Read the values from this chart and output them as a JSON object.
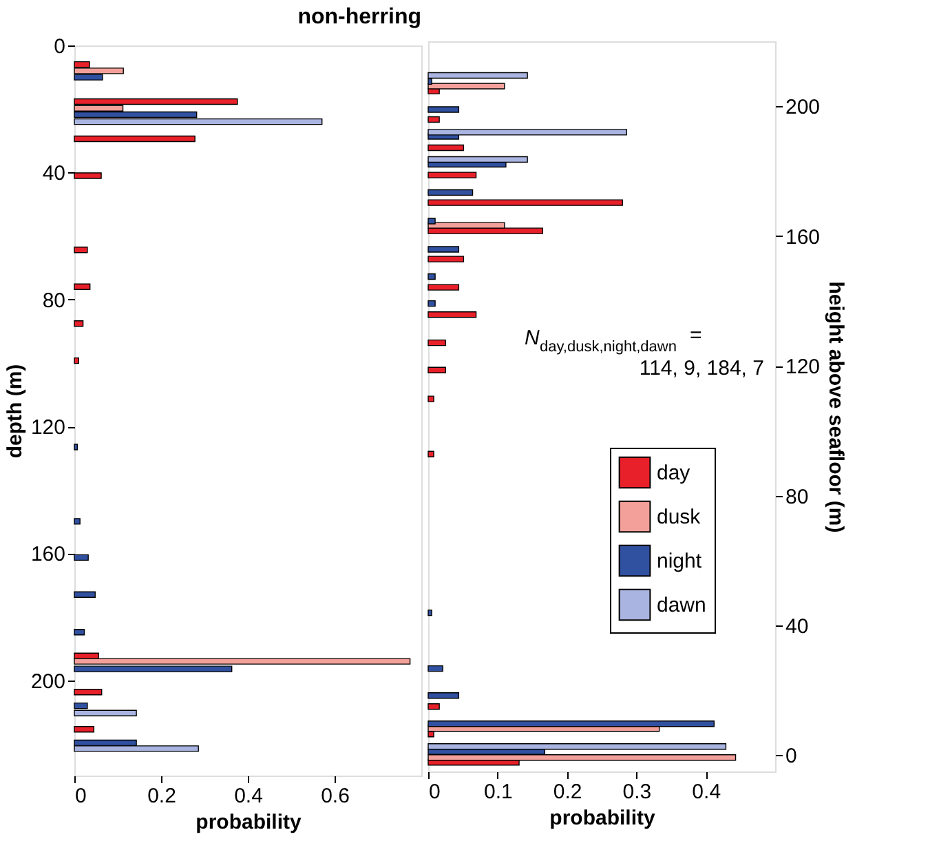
{
  "chart_data": [
    {
      "type": "bar",
      "orientation": "horizontal",
      "title": "non-herring",
      "xlabel": "probability",
      "ylabel": "depth (m)",
      "xlim": [
        0,
        0.8
      ],
      "xticks": [
        0,
        0.2,
        0.4,
        0.6
      ],
      "ylim": [
        230,
        0
      ],
      "yticks": [
        0,
        40,
        80,
        120,
        160,
        200
      ],
      "grid": false,
      "legend": false,
      "series": [
        {
          "color": "#e8202a",
          "x": [
            6,
            17.7,
            29.4,
            41,
            64.4,
            76,
            87.6,
            99.3,
            192.3,
            203.7,
            215.4
          ],
          "values": [
            0.035,
            0.376,
            0.278,
            0.062,
            0.03,
            0.036,
            0.02,
            0.01,
            0.056,
            0.063,
            0.045
          ]
        },
        {
          "color": "#f4a09a",
          "x": [
            8,
            19.8,
            194
          ],
          "values": [
            0.113,
            0.112,
            0.774
          ]
        },
        {
          "color": "#3050a0",
          "x": [
            10,
            21.8,
            126.5,
            149.9,
            161.3,
            173,
            184.8,
            196.4,
            208,
            219.7
          ],
          "values": [
            0.065,
            0.282,
            0.007,
            0.013,
            0.032,
            0.048,
            0.023,
            0.363,
            0.03,
            0.143
          ]
        },
        {
          "color": "#a9b4e0",
          "x": [
            24,
            210.3,
            221.5
          ],
          "values": [
            0.571,
            0.143,
            0.286
          ]
        }
      ]
    },
    {
      "type": "bar",
      "orientation": "horizontal",
      "xlabel": "probability",
      "ylabel": "height above seafloor (m)",
      "xlim": [
        0,
        0.5
      ],
      "xticks": [
        0,
        0.1,
        0.2,
        0.3,
        0.4
      ],
      "ylim": [
        -5,
        220
      ],
      "yticks": [
        0,
        40,
        80,
        120,
        160,
        200
      ],
      "grid": false,
      "legend": "right",
      "annotations": [
        "N$_{day,dusk,night,dawn}$ = 114, 9, 184, 7"
      ],
      "series": [
        {
          "name": "day",
          "color": "#e8202a",
          "x": [
            204.7,
            195.9,
            187.2,
            178.8,
            170.3,
            161.6,
            152.9,
            144.2,
            135.8,
            127.1,
            118.7,
            109.8,
            92.8,
            15,
            6.5,
            -2.2
          ],
          "values": [
            0.016,
            0.016,
            0.051,
            0.069,
            0.28,
            0.165,
            0.051,
            0.044,
            0.069,
            0.025,
            0.025,
            0.008,
            0.008,
            0.016,
            0.008,
            0.131
          ]
        },
        {
          "name": "dusk",
          "color": "#f4a09a",
          "x": [
            206.2,
            163.3,
            8.2,
            -0.7
          ],
          "values": [
            0.11,
            0.11,
            0.333,
            0.443
          ]
        },
        {
          "name": "night",
          "color": "#3050a0",
          "x": [
            207.6,
            199,
            190.7,
            182.1,
            173.4,
            164.6,
            155.9,
            147.5,
            139.2,
            43.9,
            26.7,
            18.4,
            9.7,
            1.1
          ],
          "values": [
            0.005,
            0.044,
            0.044,
            0.112,
            0.064,
            0.01,
            0.044,
            0.01,
            0.01,
            0.005,
            0.021,
            0.044,
            0.412,
            0.168
          ]
        },
        {
          "name": "dawn",
          "color": "#a9b4e0",
          "x": [
            209.5,
            192,
            183.6,
            2.7
          ],
          "values": [
            0.143,
            0.286,
            0.143,
            0.429
          ]
        }
      ]
    }
  ]
}
